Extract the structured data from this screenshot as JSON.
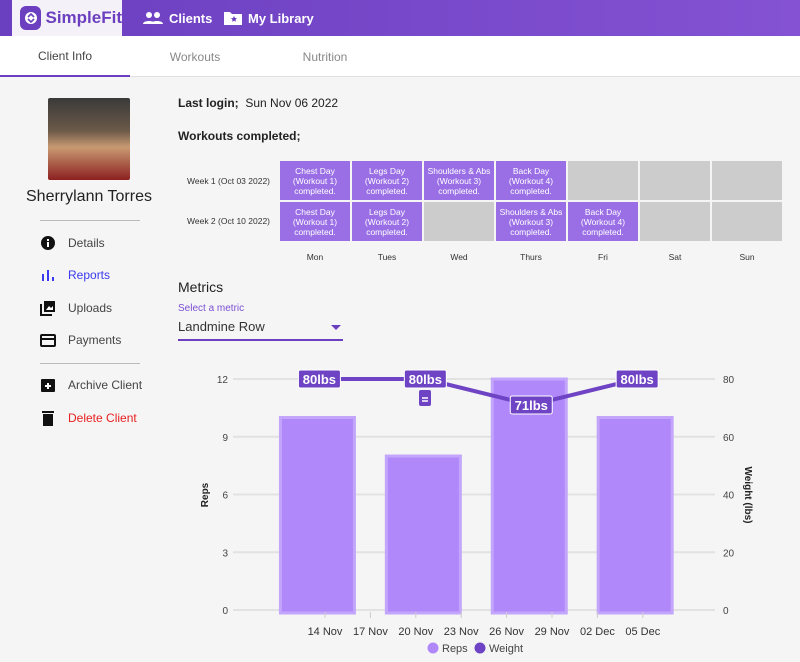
{
  "app": {
    "name": "SimpleFit",
    "nav": [
      {
        "label": "Clients",
        "icon": "people-icon"
      },
      {
        "label": "My Library",
        "icon": "folder-star-icon"
      }
    ]
  },
  "tabs": [
    {
      "label": "Client Info",
      "active": true
    },
    {
      "label": "Workouts"
    },
    {
      "label": "Nutrition"
    }
  ],
  "client": {
    "name": "Sherrylann Torres"
  },
  "sidebar": {
    "items": [
      {
        "label": "Details",
        "icon": "info-icon"
      },
      {
        "label": "Reports",
        "icon": "bar-chart-icon",
        "active": true
      },
      {
        "label": "Uploads",
        "icon": "photo-library-icon"
      },
      {
        "label": "Payments",
        "icon": "credit-card-icon"
      }
    ],
    "actions": [
      {
        "label": "Archive Client",
        "icon": "archive-icon"
      },
      {
        "label": "Delete Client",
        "icon": "trash-icon"
      }
    ]
  },
  "last_login": {
    "label": "Last login;",
    "value": "Sun Nov 06 2022"
  },
  "workouts": {
    "title": "Workouts completed;",
    "days": [
      "Mon",
      "Tues",
      "Wed",
      "Thurs",
      "Fri",
      "Sat",
      "Sun"
    ],
    "weeks": [
      {
        "label": "Week 1 (Oct 03 2022)",
        "cells": [
          "Chest Day (Workout 1) completed.",
          "Legs Day (Workout 2) completed.",
          "Shoulders & Abs (Workout 3) completed.",
          "Back Day (Workout 4) completed.",
          "",
          "",
          ""
        ]
      },
      {
        "label": "Week 2 (Oct 10 2022)",
        "cells": [
          "Chest Day (Workout 1) completed.",
          "Legs Day (Workout 2) completed.",
          "",
          "Shoulders & Abs (Workout 3) completed.",
          "Back Day (Workout 4) completed.",
          "",
          ""
        ]
      }
    ]
  },
  "metrics": {
    "title": "Metrics",
    "select_label": "Select a metric",
    "selected": "Landmine Row"
  },
  "chart_data": {
    "type": "bar",
    "x_ticks": [
      "14 Nov",
      "17 Nov",
      "20 Nov",
      "23 Nov",
      "26 Nov",
      "29 Nov",
      "02 Dec",
      "05 Dec"
    ],
    "x_dates_day_of_nov": [
      13.5,
      20.5,
      27.5,
      34.5
    ],
    "series": [
      {
        "name": "Reps",
        "type": "bar",
        "axis": "left",
        "values": [
          10,
          8,
          12,
          10
        ],
        "color": "#b088fa"
      },
      {
        "name": "Weight",
        "type": "line",
        "axis": "right",
        "values": [
          80,
          80,
          71,
          80
        ],
        "labels": [
          "80lbs",
          "80lbs",
          "71lbs",
          "80lbs"
        ],
        "color": "#6e44c4"
      }
    ],
    "ylabel": "Reps",
    "ylim": [
      0,
      12
    ],
    "yticks": [
      "0",
      "3",
      "6",
      "9",
      "12"
    ],
    "y2label": "Weight (lbs)",
    "y2lim": [
      0,
      80
    ],
    "y2ticks": [
      "0",
      "20",
      "40",
      "60",
      "80"
    ],
    "legend": "bottom",
    "grid": true
  }
}
